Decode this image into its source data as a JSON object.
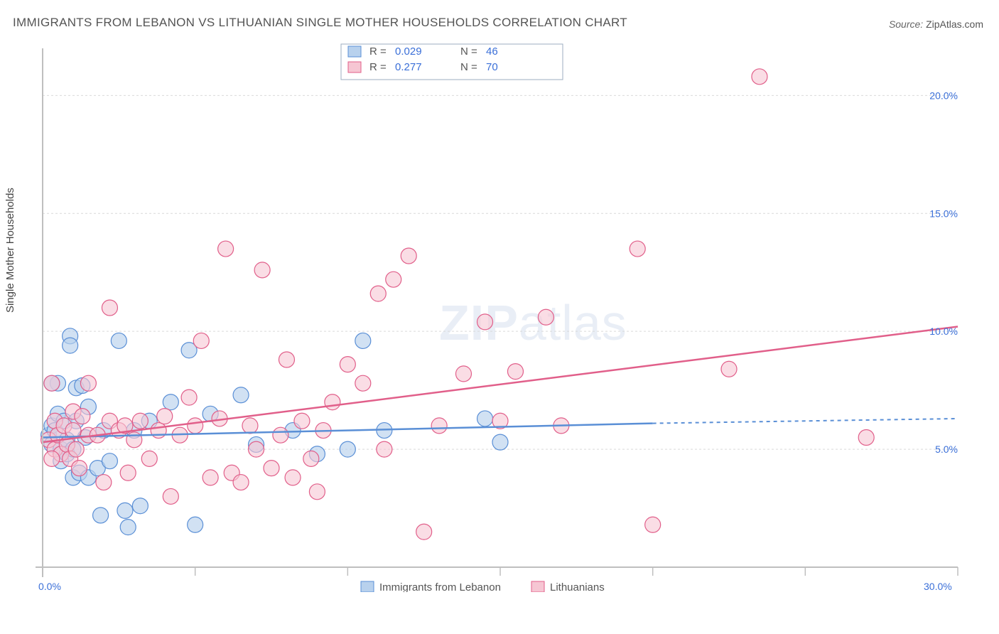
{
  "title": "IMMIGRANTS FROM LEBANON VS LITHUANIAN SINGLE MOTHER HOUSEHOLDS CORRELATION CHART",
  "source_label": "Source: ",
  "source_value": "ZipAtlas.com",
  "ylabel": "Single Mother Households",
  "watermark_bold": "ZIP",
  "watermark_light": "atlas",
  "chart": {
    "type": "scatter",
    "xlim": [
      0,
      30
    ],
    "ylim": [
      0,
      22
    ],
    "x_axis_label_min": "0.0%",
    "x_axis_label_max": "30.0%",
    "y_ticks": [
      5,
      10,
      15,
      20
    ],
    "y_tick_labels": [
      "5.0%",
      "10.0%",
      "15.0%",
      "20.0%"
    ],
    "x_tick_positions": [
      0,
      5,
      10,
      15,
      20,
      25,
      30
    ],
    "background_color": "#ffffff",
    "grid_color": "#d9d9d9",
    "axis_color": "#bfbfbf",
    "tick_label_color": "#3a6fd8",
    "series": [
      {
        "name": "Immigrants from Lebanon",
        "color_fill": "#b8d1ed",
        "color_stroke": "#5a8fd6",
        "opacity": 0.65,
        "marker_radius": 11,
        "r_value": "0.029",
        "n_value": "46",
        "trend": {
          "x1": 0,
          "y1": 5.5,
          "x2": 20,
          "y2": 6.1,
          "x2_dash": 30,
          "y2_dash": 6.3
        },
        "points": [
          [
            0.2,
            5.6
          ],
          [
            0.3,
            6.0
          ],
          [
            0.3,
            5.2
          ],
          [
            0.4,
            5.8
          ],
          [
            0.5,
            7.8
          ],
          [
            0.5,
            6.5
          ],
          [
            0.6,
            5.0
          ],
          [
            0.6,
            4.5
          ],
          [
            0.7,
            6.2
          ],
          [
            0.8,
            5.4
          ],
          [
            0.8,
            4.8
          ],
          [
            0.9,
            9.8
          ],
          [
            0.9,
            9.4
          ],
          [
            1.0,
            5.0
          ],
          [
            1.0,
            3.8
          ],
          [
            1.1,
            7.6
          ],
          [
            1.1,
            6.2
          ],
          [
            1.2,
            4.0
          ],
          [
            1.3,
            7.7
          ],
          [
            1.4,
            5.5
          ],
          [
            1.5,
            3.8
          ],
          [
            1.5,
            6.8
          ],
          [
            1.8,
            4.2
          ],
          [
            1.9,
            2.2
          ],
          [
            2.0,
            5.8
          ],
          [
            2.2,
            4.5
          ],
          [
            2.5,
            9.6
          ],
          [
            2.7,
            2.4
          ],
          [
            2.8,
            1.7
          ],
          [
            3.0,
            5.8
          ],
          [
            3.2,
            2.6
          ],
          [
            3.5,
            6.2
          ],
          [
            4.2,
            7.0
          ],
          [
            4.8,
            9.2
          ],
          [
            5.0,
            1.8
          ],
          [
            5.5,
            6.5
          ],
          [
            6.5,
            7.3
          ],
          [
            7.0,
            5.2
          ],
          [
            8.2,
            5.8
          ],
          [
            9.0,
            4.8
          ],
          [
            10.0,
            5.0
          ],
          [
            10.5,
            9.6
          ],
          [
            11.2,
            5.8
          ],
          [
            14.5,
            6.3
          ],
          [
            15.0,
            5.3
          ],
          [
            0.3,
            7.8
          ]
        ]
      },
      {
        "name": "Lithuanians",
        "color_fill": "#f6c6d3",
        "color_stroke": "#e15f8a",
        "opacity": 0.6,
        "marker_radius": 11,
        "r_value": "0.277",
        "n_value": "70",
        "trend": {
          "x1": 0,
          "y1": 5.3,
          "x2": 30,
          "y2": 10.2
        },
        "points": [
          [
            0.2,
            5.4
          ],
          [
            0.3,
            7.8
          ],
          [
            0.4,
            5.0
          ],
          [
            0.4,
            6.2
          ],
          [
            0.5,
            5.6
          ],
          [
            0.6,
            4.8
          ],
          [
            0.7,
            6.0
          ],
          [
            0.8,
            5.2
          ],
          [
            0.9,
            4.6
          ],
          [
            1.0,
            5.8
          ],
          [
            1.0,
            6.6
          ],
          [
            1.1,
            5.0
          ],
          [
            1.2,
            4.2
          ],
          [
            1.3,
            6.4
          ],
          [
            1.5,
            5.6
          ],
          [
            1.5,
            7.8
          ],
          [
            1.8,
            5.6
          ],
          [
            2.0,
            3.6
          ],
          [
            2.2,
            6.2
          ],
          [
            2.2,
            11.0
          ],
          [
            2.5,
            5.8
          ],
          [
            2.7,
            6.0
          ],
          [
            2.8,
            4.0
          ],
          [
            3.0,
            5.4
          ],
          [
            3.2,
            6.2
          ],
          [
            3.5,
            4.6
          ],
          [
            3.8,
            5.8
          ],
          [
            4.0,
            6.4
          ],
          [
            4.2,
            3.0
          ],
          [
            4.5,
            5.6
          ],
          [
            4.8,
            7.2
          ],
          [
            5.0,
            6.0
          ],
          [
            5.2,
            9.6
          ],
          [
            5.5,
            3.8
          ],
          [
            5.8,
            6.3
          ],
          [
            6.0,
            13.5
          ],
          [
            6.2,
            4.0
          ],
          [
            6.5,
            3.6
          ],
          [
            6.8,
            6.0
          ],
          [
            7.0,
            5.0
          ],
          [
            7.2,
            12.6
          ],
          [
            7.5,
            4.2
          ],
          [
            7.8,
            5.6
          ],
          [
            8.0,
            8.8
          ],
          [
            8.2,
            3.8
          ],
          [
            8.5,
            6.2
          ],
          [
            8.8,
            4.6
          ],
          [
            9.0,
            3.2
          ],
          [
            9.2,
            5.8
          ],
          [
            9.5,
            7.0
          ],
          [
            10.0,
            8.6
          ],
          [
            10.5,
            7.8
          ],
          [
            11.0,
            11.6
          ],
          [
            11.2,
            5.0
          ],
          [
            11.5,
            12.2
          ],
          [
            12.0,
            13.2
          ],
          [
            12.5,
            1.5
          ],
          [
            13.0,
            6.0
          ],
          [
            13.8,
            8.2
          ],
          [
            14.5,
            10.4
          ],
          [
            15.0,
            6.2
          ],
          [
            15.5,
            8.3
          ],
          [
            16.5,
            10.6
          ],
          [
            17.0,
            6.0
          ],
          [
            19.5,
            13.5
          ],
          [
            20.0,
            1.8
          ],
          [
            22.5,
            8.4
          ],
          [
            23.5,
            20.8
          ],
          [
            27.0,
            5.5
          ],
          [
            0.3,
            4.6
          ]
        ]
      }
    ],
    "legend_top": {
      "border_color": "#9daec2",
      "r_label": "R =",
      "n_label": "N ="
    },
    "legend_bottom": {
      "items": [
        "Immigrants from Lebanon",
        "Lithuanians"
      ]
    }
  }
}
